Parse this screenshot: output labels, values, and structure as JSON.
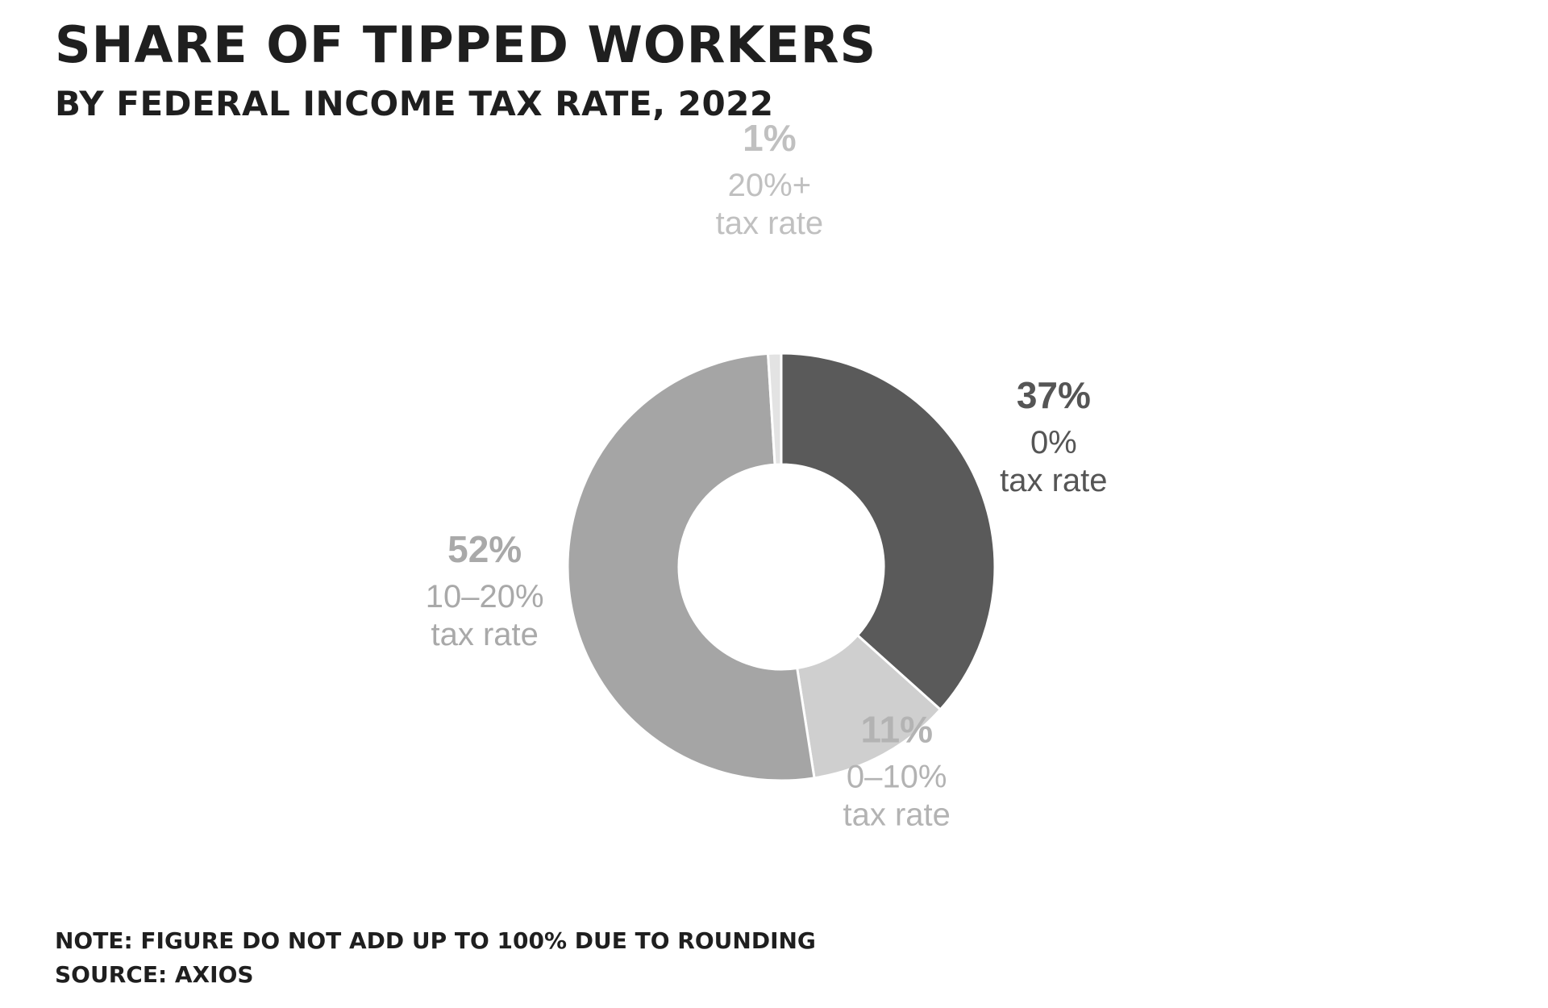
{
  "title": "SHARE OF TIPPED WORKERS",
  "subtitle": "BY FEDERAL INCOME TAX RATE, 2022",
  "note": "NOTE: FIGURE DO NOT ADD UP TO 100% DUE TO ROUNDING",
  "source": "SOURCE: AXIOS",
  "chart_data": {
    "type": "pie",
    "donut": true,
    "categories": [
      "0% tax rate",
      "0–10% tax rate",
      "10–20% tax rate",
      "20%+ tax rate"
    ],
    "values": [
      37,
      11,
      52,
      1
    ],
    "value_labels": [
      "37%",
      "11%",
      "52%",
      "1%"
    ],
    "slice_labels": [
      [
        "0%",
        "tax rate"
      ],
      [
        "0–10%",
        "tax rate"
      ],
      [
        "10–20%",
        "tax rate"
      ],
      [
        "20%+",
        "tax rate"
      ]
    ],
    "colors": [
      "#5a5a5a",
      "#cfcfcf",
      "#a5a5a5",
      "#e3e3e3"
    ],
    "label_colors": [
      "#555555",
      "#b3b3b3",
      "#a9a9a9",
      "#c0c0c0"
    ],
    "start_angle_deg": 0,
    "direction": "clockwise"
  }
}
